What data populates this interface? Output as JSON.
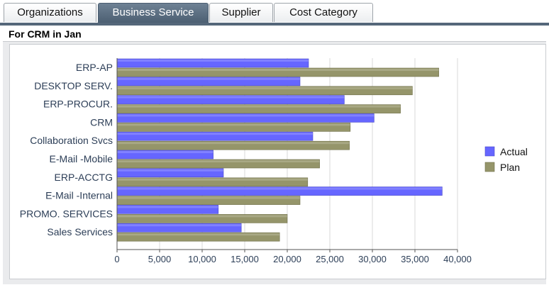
{
  "tabs": [
    {
      "label": "Organizations",
      "active": false
    },
    {
      "label": "Business Service",
      "active": true
    },
    {
      "label": "Supplier",
      "active": false
    },
    {
      "label": "Cost Category",
      "active": false
    }
  ],
  "section": {
    "title": "For CRM in Jan"
  },
  "colors": {
    "actual": "#6666ff",
    "plan": "#95956a",
    "tab_active": "#5a6d80"
  },
  "chart_data": {
    "type": "bar",
    "orientation": "horizontal",
    "categories": [
      "ERP-AP",
      "DESKTOP SERV.",
      "ERP-PROCUR.",
      "CRM",
      "Collaboration Svcs",
      "E-Mail -Mobile",
      "ERP-ACCTG",
      "E-Mail -Internal",
      "PROMO. SERVICES",
      "Sales Services"
    ],
    "series": [
      {
        "name": "Actual",
        "values": [
          22500,
          21500,
          26700,
          30200,
          23000,
          11300,
          12500,
          38200,
          11900,
          14600
        ]
      },
      {
        "name": "Plan",
        "values": [
          37800,
          34700,
          33300,
          27400,
          27300,
          23800,
          22400,
          21500,
          20000,
          19100
        ]
      }
    ],
    "xlim": [
      0,
      40000
    ],
    "ticks": [
      "0",
      "5,000",
      "10,000",
      "15,000",
      "20,000",
      "25,000",
      "30,000",
      "35,000",
      "40,000"
    ],
    "grid": true,
    "legend": "right"
  }
}
